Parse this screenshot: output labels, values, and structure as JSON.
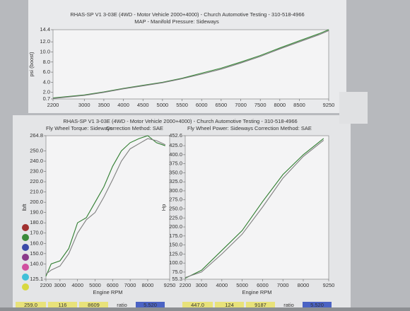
{
  "chart_data": [
    {
      "type": "line",
      "title": "RHAS-SP V1 3-03E  (4WD - Motor Vehicle 2000+4000) - Church Automotive Testing - 310-518-4966",
      "subtitle": "MAP - Manifold Pressure: Sideways",
      "y_label": "psi (boost)",
      "x": [
        2200,
        3000,
        3500,
        4000,
        4500,
        5000,
        5500,
        6000,
        6500,
        7000,
        7500,
        8000,
        8500,
        9000,
        9250
      ],
      "series": [
        {
          "color": "#3a8a3a",
          "values": [
            0.9,
            1.5,
            2.1,
            2.8,
            3.4,
            4.0,
            4.8,
            5.8,
            6.8,
            8.0,
            9.3,
            10.8,
            12.2,
            13.6,
            14.4
          ]
        },
        {
          "color": "#7a7a7a",
          "values": [
            0.8,
            1.4,
            2.0,
            2.7,
            3.3,
            3.9,
            4.7,
            5.6,
            6.6,
            7.8,
            9.1,
            10.6,
            12.0,
            13.4,
            14.2
          ]
        }
      ],
      "xlim": [
        2200,
        9250
      ],
      "xticks": [
        2200,
        3000,
        3500,
        4000,
        4500,
        5000,
        5500,
        6000,
        6500,
        7000,
        7500,
        8000,
        8500,
        9250
      ],
      "ylim": [
        0.7,
        14.4
      ],
      "yticks": [
        0.7,
        {
          "value": 2,
          "label": "2.0"
        },
        {
          "value": 4,
          "label": "4.0"
        },
        {
          "value": 6,
          "label": "6.0"
        },
        {
          "value": 8,
          "label": "8.0"
        },
        {
          "value": 10,
          "label": "10.0"
        },
        {
          "value": 12,
          "label": "12.0"
        },
        14.4
      ]
    },
    {
      "type": "line",
      "title": "RHAS-SP V1 3-03E  (4WD - Motor Vehicle 2000+4000) - Church Automotive Testing - 310-518-4966",
      "subtitle": "Fly Wheel Torque: Sideways",
      "note": "Correction Method: SAE",
      "y_label": "lbft",
      "x_label": "Engine RPM",
      "x": [
        2200,
        2500,
        3000,
        3500,
        4000,
        4500,
        5000,
        5500,
        6000,
        6500,
        7000,
        7500,
        8000,
        8500,
        9000
      ],
      "series": [
        {
          "color": "#2f7d2f",
          "values": [
            128,
            140,
            143,
            155,
            180,
            185,
            200,
            215,
            235,
            250,
            258,
            262,
            264.8,
            258,
            255
          ]
        },
        {
          "color": "#808080",
          "values": [
            130,
            134,
            138,
            150,
            170,
            183,
            190,
            205,
            222,
            240,
            252,
            257,
            262,
            260,
            256
          ]
        }
      ],
      "xlim": [
        2200,
        9250
      ],
      "xticks": [
        2200,
        3000,
        4000,
        5000,
        6000,
        7000,
        8000,
        9250
      ],
      "ylim": [
        125.1,
        264.8
      ],
      "yticks": [
        125.1,
        {
          "value": 140,
          "label": "140.0"
        },
        {
          "value": 150,
          "label": "150.0"
        },
        {
          "value": 160,
          "label": "160.0"
        },
        {
          "value": 170,
          "label": "170.0"
        },
        {
          "value": 180,
          "label": "180.0"
        },
        {
          "value": 190,
          "label": "190.0"
        },
        {
          "value": 200,
          "label": "200.0"
        },
        {
          "value": 210,
          "label": "210.0"
        },
        {
          "value": 220,
          "label": "220.0"
        },
        {
          "value": 230,
          "label": "230.0"
        },
        {
          "value": 240,
          "label": "240.0"
        },
        {
          "value": 250,
          "label": "250.0"
        },
        264.8
      ]
    },
    {
      "type": "line",
      "subtitle": "Fly Wheel Power: Sideways",
      "note": "Correction Method: SAE",
      "y_label": "Hp",
      "x_label": "Engine RPM",
      "x": [
        2200,
        3000,
        4000,
        5000,
        6000,
        7000,
        8000,
        9000
      ],
      "series": [
        {
          "color": "#2f7d2f",
          "values": [
            58,
            80,
            135,
            190,
            270,
            345,
            400,
            445
          ]
        },
        {
          "color": "#808080",
          "values": [
            60,
            75,
            125,
            180,
            255,
            335,
            395,
            440
          ]
        }
      ],
      "xlim": [
        2200,
        9250
      ],
      "xticks": [
        2200,
        3000,
        4000,
        5000,
        6000,
        7000,
        8000,
        9250
      ],
      "ylim": [
        55.3,
        452.6
      ],
      "yticks": [
        55.3,
        {
          "value": 75,
          "label": "75.0"
        },
        {
          "value": 100,
          "label": "100.0"
        },
        {
          "value": 125,
          "label": "125.0"
        },
        {
          "value": 150,
          "label": "150.0"
        },
        {
          "value": 175,
          "label": "175.0"
        },
        {
          "value": 200,
          "label": "200.0"
        },
        {
          "value": 225,
          "label": "225.0"
        },
        {
          "value": 250,
          "label": "250.0"
        },
        {
          "value": 275,
          "label": "275.0"
        },
        {
          "value": 300,
          "label": "300.0"
        },
        {
          "value": 325,
          "label": "325.0"
        },
        {
          "value": 350,
          "label": "350.0"
        },
        {
          "value": 375,
          "label": "375.0"
        },
        {
          "value": 400,
          "label": "400.0"
        },
        {
          "value": 425,
          "label": "425.0"
        },
        452.6
      ]
    }
  ],
  "footer": {
    "left": [
      "259.0",
      "116",
      "8609",
      "ratio",
      "5.520"
    ],
    "right": [
      "447.0",
      "124",
      "9187",
      "ratio",
      "5.520"
    ]
  }
}
